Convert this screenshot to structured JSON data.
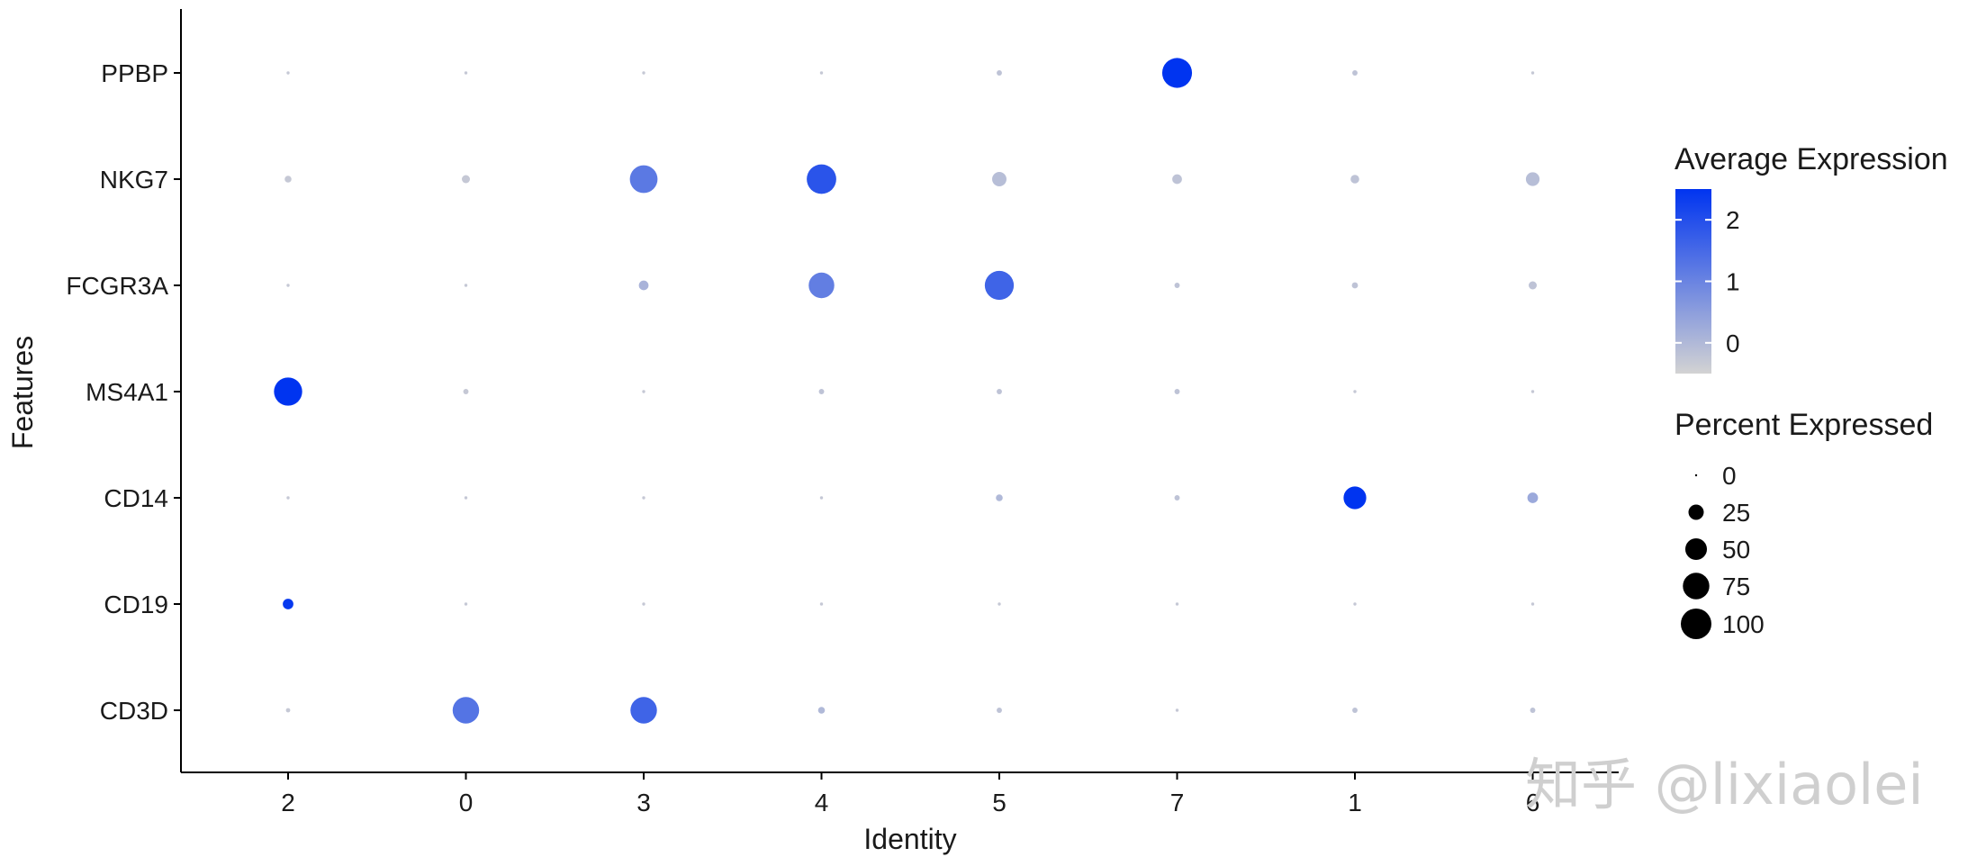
{
  "chart_data": {
    "type": "scatter",
    "subtype": "dotplot",
    "title": "",
    "xlabel": "Identity",
    "ylabel": "Features",
    "x_categories": [
      "2",
      "0",
      "3",
      "4",
      "5",
      "7",
      "1",
      "6"
    ],
    "y_categories": [
      "CD3D",
      "CD19",
      "CD14",
      "MS4A1",
      "FCGR3A",
      "NKG7",
      "PPBP"
    ],
    "points": [
      {
        "feature": "PPBP",
        "identity": "2",
        "avg_exp": -0.3,
        "pct": 1
      },
      {
        "feature": "PPBP",
        "identity": "0",
        "avg_exp": -0.3,
        "pct": 1
      },
      {
        "feature": "PPBP",
        "identity": "3",
        "avg_exp": -0.3,
        "pct": 1
      },
      {
        "feature": "PPBP",
        "identity": "4",
        "avg_exp": -0.3,
        "pct": 1
      },
      {
        "feature": "PPBP",
        "identity": "5",
        "avg_exp": -0.2,
        "pct": 3
      },
      {
        "feature": "PPBP",
        "identity": "7",
        "avg_exp": 2.5,
        "pct": 95
      },
      {
        "feature": "PPBP",
        "identity": "1",
        "avg_exp": -0.2,
        "pct": 3
      },
      {
        "feature": "PPBP",
        "identity": "6",
        "avg_exp": -0.3,
        "pct": 1
      },
      {
        "feature": "NKG7",
        "identity": "2",
        "avg_exp": -0.3,
        "pct": 5
      },
      {
        "feature": "NKG7",
        "identity": "0",
        "avg_exp": -0.3,
        "pct": 7
      },
      {
        "feature": "NKG7",
        "identity": "3",
        "avg_exp": 1.2,
        "pct": 82
      },
      {
        "feature": "NKG7",
        "identity": "4",
        "avg_exp": 1.9,
        "pct": 93
      },
      {
        "feature": "NKG7",
        "identity": "5",
        "avg_exp": -0.1,
        "pct": 22
      },
      {
        "feature": "NKG7",
        "identity": "7",
        "avg_exp": -0.2,
        "pct": 10
      },
      {
        "feature": "NKG7",
        "identity": "1",
        "avg_exp": -0.2,
        "pct": 8
      },
      {
        "feature": "NKG7",
        "identity": "6",
        "avg_exp": -0.1,
        "pct": 20
      },
      {
        "feature": "FCGR3A",
        "identity": "2",
        "avg_exp": -0.3,
        "pct": 1
      },
      {
        "feature": "FCGR3A",
        "identity": "0",
        "avg_exp": -0.3,
        "pct": 1
      },
      {
        "feature": "FCGR3A",
        "identity": "3",
        "avg_exp": 0.1,
        "pct": 10
      },
      {
        "feature": "FCGR3A",
        "identity": "4",
        "avg_exp": 1.1,
        "pct": 70
      },
      {
        "feature": "FCGR3A",
        "identity": "5",
        "avg_exp": 1.6,
        "pct": 90
      },
      {
        "feature": "FCGR3A",
        "identity": "7",
        "avg_exp": -0.2,
        "pct": 3
      },
      {
        "feature": "FCGR3A",
        "identity": "1",
        "avg_exp": -0.2,
        "pct": 4
      },
      {
        "feature": "FCGR3A",
        "identity": "6",
        "avg_exp": -0.2,
        "pct": 7
      },
      {
        "feature": "MS4A1",
        "identity": "2",
        "avg_exp": 2.5,
        "pct": 85
      },
      {
        "feature": "MS4A1",
        "identity": "0",
        "avg_exp": -0.3,
        "pct": 3
      },
      {
        "feature": "MS4A1",
        "identity": "3",
        "avg_exp": -0.3,
        "pct": 1
      },
      {
        "feature": "MS4A1",
        "identity": "4",
        "avg_exp": -0.2,
        "pct": 3
      },
      {
        "feature": "MS4A1",
        "identity": "5",
        "avg_exp": -0.2,
        "pct": 3
      },
      {
        "feature": "MS4A1",
        "identity": "7",
        "avg_exp": -0.2,
        "pct": 3
      },
      {
        "feature": "MS4A1",
        "identity": "1",
        "avg_exp": -0.3,
        "pct": 1
      },
      {
        "feature": "MS4A1",
        "identity": "6",
        "avg_exp": -0.3,
        "pct": 1
      },
      {
        "feature": "CD14",
        "identity": "2",
        "avg_exp": -0.3,
        "pct": 1
      },
      {
        "feature": "CD14",
        "identity": "0",
        "avg_exp": -0.3,
        "pct": 1
      },
      {
        "feature": "CD14",
        "identity": "3",
        "avg_exp": -0.3,
        "pct": 1
      },
      {
        "feature": "CD14",
        "identity": "4",
        "avg_exp": -0.3,
        "pct": 1
      },
      {
        "feature": "CD14",
        "identity": "5",
        "avg_exp": 0.0,
        "pct": 5
      },
      {
        "feature": "CD14",
        "identity": "7",
        "avg_exp": -0.2,
        "pct": 3
      },
      {
        "feature": "CD14",
        "identity": "1",
        "avg_exp": 2.5,
        "pct": 55
      },
      {
        "feature": "CD14",
        "identity": "6",
        "avg_exp": 0.3,
        "pct": 12
      },
      {
        "feature": "CD19",
        "identity": "2",
        "avg_exp": 2.4,
        "pct": 12
      },
      {
        "feature": "CD19",
        "identity": "0",
        "avg_exp": -0.3,
        "pct": 1
      },
      {
        "feature": "CD19",
        "identity": "3",
        "avg_exp": -0.3,
        "pct": 1
      },
      {
        "feature": "CD19",
        "identity": "4",
        "avg_exp": -0.3,
        "pct": 1
      },
      {
        "feature": "CD19",
        "identity": "5",
        "avg_exp": -0.3,
        "pct": 1
      },
      {
        "feature": "CD19",
        "identity": "7",
        "avg_exp": -0.3,
        "pct": 1
      },
      {
        "feature": "CD19",
        "identity": "1",
        "avg_exp": -0.3,
        "pct": 1
      },
      {
        "feature": "CD19",
        "identity": "6",
        "avg_exp": -0.3,
        "pct": 1
      },
      {
        "feature": "CD3D",
        "identity": "2",
        "avg_exp": -0.3,
        "pct": 2
      },
      {
        "feature": "CD3D",
        "identity": "0",
        "avg_exp": 1.3,
        "pct": 75
      },
      {
        "feature": "CD3D",
        "identity": "3",
        "avg_exp": 1.6,
        "pct": 75
      },
      {
        "feature": "CD3D",
        "identity": "4",
        "avg_exp": 0.0,
        "pct": 5
      },
      {
        "feature": "CD3D",
        "identity": "5",
        "avg_exp": -0.2,
        "pct": 3
      },
      {
        "feature": "CD3D",
        "identity": "7",
        "avg_exp": -0.3,
        "pct": 1
      },
      {
        "feature": "CD3D",
        "identity": "1",
        "avg_exp": -0.2,
        "pct": 3
      },
      {
        "feature": "CD3D",
        "identity": "6",
        "avg_exp": -0.2,
        "pct": 3
      }
    ],
    "color_legend": {
      "title": "Average Expression",
      "ticks": [
        "2",
        "1",
        "0"
      ],
      "tick_values": [
        2,
        1,
        0
      ],
      "range": [
        -0.5,
        2.5
      ],
      "low_color": "#d3d3d3",
      "high_color": "#0034f0"
    },
    "size_legend": {
      "title": "Percent Expressed",
      "labels": [
        "0",
        "25",
        "50",
        "75",
        "100"
      ],
      "values": [
        0,
        25,
        50,
        75,
        100
      ],
      "color": "#000000"
    },
    "grid": false
  },
  "watermark": {
    "text": "知乎 @lixiaolei"
  }
}
